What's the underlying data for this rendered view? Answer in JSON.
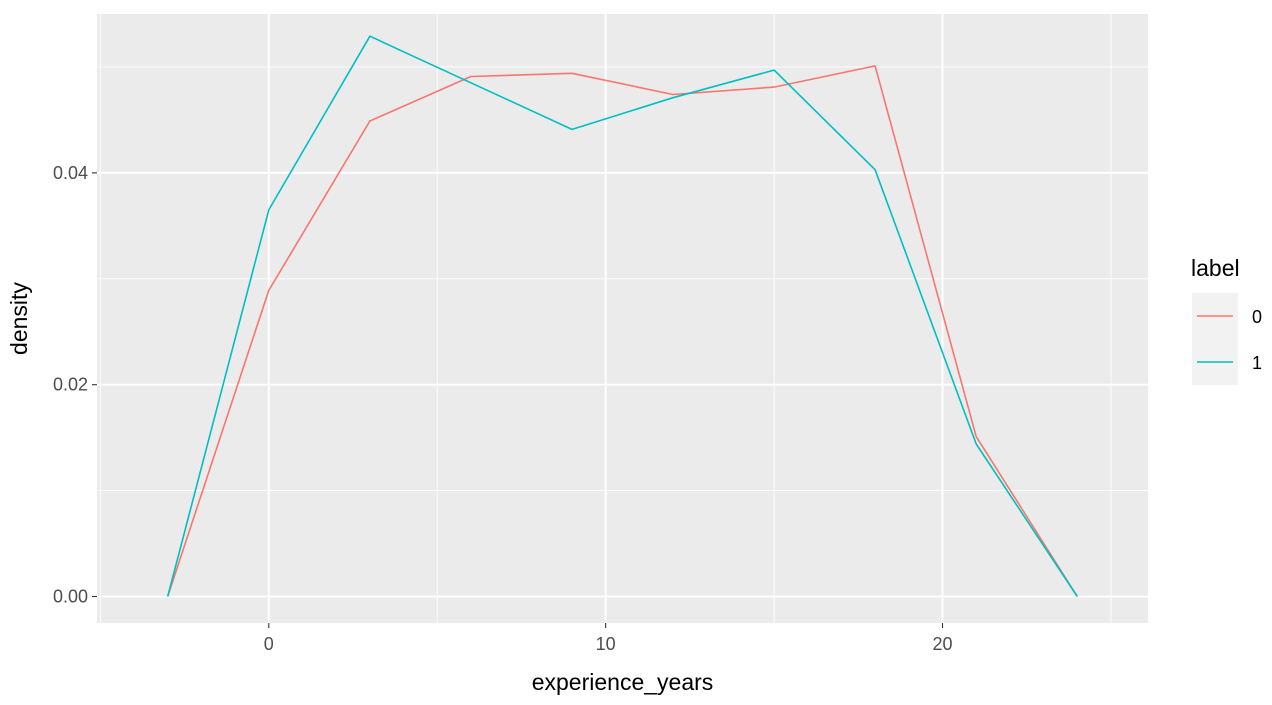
{
  "chart_data": {
    "type": "line",
    "title": "",
    "xlabel": "experience_years",
    "ylabel": "density",
    "xlim": [
      -5.1,
      26.1
    ],
    "ylim": [
      -0.0025,
      0.055
    ],
    "x_ticks": [
      0,
      10,
      20
    ],
    "x_tick_labels": [
      "0",
      "10",
      "20"
    ],
    "x_minor_ticks": [
      -5,
      5,
      15,
      25
    ],
    "y_ticks": [
      0.0,
      0.02,
      0.04
    ],
    "y_tick_labels": [
      "0.00",
      "0.02",
      "0.04"
    ],
    "y_minor_ticks": [
      0.01,
      0.03,
      0.05
    ],
    "grid": true,
    "legend": {
      "title": "label",
      "position": "right"
    },
    "series": [
      {
        "name": "0",
        "color": "#F8766D",
        "x": [
          -3,
          0,
          3,
          6,
          9,
          12,
          15,
          18,
          21,
          24
        ],
        "y": [
          0.0,
          0.0289,
          0.0449,
          0.0491,
          0.0494,
          0.0474,
          0.0481,
          0.0501,
          0.0151,
          0.0
        ]
      },
      {
        "name": "1",
        "color": "#00BFC4",
        "x": [
          -3,
          0,
          3,
          6,
          9,
          12,
          15,
          18,
          21,
          24
        ],
        "y": [
          0.0,
          0.0365,
          0.0529,
          0.0485,
          0.0441,
          0.0471,
          0.0497,
          0.0403,
          0.0144,
          0.0
        ]
      }
    ]
  },
  "theme": {
    "panel_bg": "#EBEBEB",
    "grid_major": "#FFFFFF",
    "legend_key_bg": "#F2F2F2"
  }
}
